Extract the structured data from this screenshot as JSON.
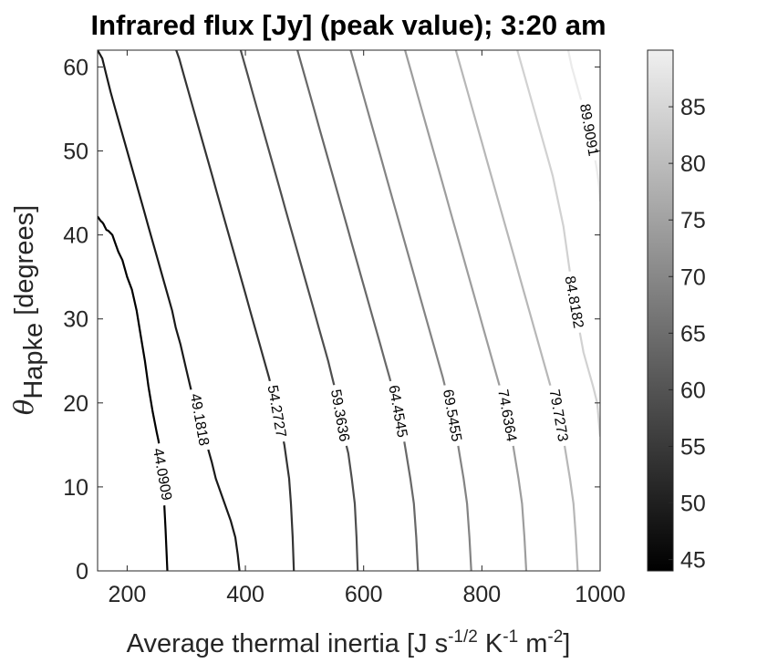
{
  "chart_data": {
    "type": "contour",
    "title": "Infrared flux [Jy] (peak value); 3:20 am",
    "xlabel": {
      "text": "Average thermal inertia [J s",
      "sup1": "-1/2",
      "mid1": " K",
      "sup2": "-1",
      "mid2": " m",
      "sup3": "-2",
      "end": "]"
    },
    "ylabel": {
      "theta": "θ",
      "sub": "Hapke",
      "unit": " [degrees]"
    },
    "xlim": [
      150,
      1000
    ],
    "ylim": [
      0,
      62
    ],
    "xticks": [
      200,
      400,
      600,
      800,
      1000
    ],
    "yticks": [
      0,
      10,
      20,
      30,
      40,
      50,
      60
    ],
    "colorbar": {
      "colormap": "gray",
      "limits": [
        44,
        90
      ],
      "ticks": [
        45,
        50,
        55,
        60,
        65,
        70,
        75,
        80,
        85
      ]
    },
    "levels": [
      {
        "value": 44.0909,
        "label": "44.0909",
        "label_y": 11.5,
        "points": [
          [
            268,
            0
          ],
          [
            265,
            5
          ],
          [
            262,
            9
          ],
          [
            258,
            13
          ],
          [
            253,
            15.5
          ],
          [
            250,
            16.5
          ],
          [
            243,
            19
          ],
          [
            236,
            22
          ],
          [
            230,
            25
          ],
          [
            223,
            28
          ],
          [
            216,
            31
          ],
          [
            208,
            33.5
          ],
          [
            200,
            35
          ],
          [
            192,
            37
          ],
          [
            185,
            38
          ],
          [
            180,
            39
          ],
          [
            175,
            40
          ],
          [
            168,
            40.5
          ],
          [
            165,
            40.6
          ],
          [
            162,
            41
          ],
          [
            160,
            41.3
          ],
          [
            158,
            41.5
          ],
          [
            155,
            41.7
          ],
          [
            152,
            42
          ],
          [
            150,
            42.2
          ]
        ],
        "extra": []
      },
      {
        "value": 49.1818,
        "label": "49.1818",
        "label_y": 18,
        "points": [
          [
            390,
            0
          ],
          [
            387,
            2
          ],
          [
            383,
            4
          ],
          [
            375,
            6
          ],
          [
            360,
            9
          ],
          [
            350,
            11
          ],
          [
            343,
            13
          ],
          [
            335,
            15
          ],
          [
            330,
            16.5
          ],
          [
            320,
            18.5
          ],
          [
            310,
            21
          ],
          [
            300,
            24
          ],
          [
            290,
            27
          ],
          [
            282,
            29
          ],
          [
            276,
            31
          ],
          [
            268,
            33
          ],
          [
            260,
            35
          ],
          [
            252,
            37
          ],
          [
            244,
            39
          ],
          [
            236,
            41
          ],
          [
            228,
            43
          ],
          [
            220,
            45
          ],
          [
            212,
            47
          ],
          [
            204,
            49
          ],
          [
            196,
            51
          ],
          [
            188,
            53
          ],
          [
            180,
            55
          ],
          [
            172,
            57
          ],
          [
            165,
            59
          ],
          [
            158,
            61
          ],
          [
            150,
            62
          ]
        ]
      },
      {
        "value": 54.2727,
        "label": "54.2727",
        "label_y": 19,
        "points": [
          [
            482,
            0
          ],
          [
            480,
            4
          ],
          [
            477,
            8
          ],
          [
            474,
            11
          ],
          [
            470,
            13
          ],
          [
            466,
            15
          ],
          [
            460,
            17
          ],
          [
            453,
            19
          ],
          [
            447,
            21
          ],
          [
            440,
            23
          ],
          [
            432,
            25
          ],
          [
            424,
            27
          ],
          [
            416,
            29
          ],
          [
            408,
            31
          ],
          [
            400,
            33
          ],
          [
            392,
            35
          ],
          [
            384,
            37
          ],
          [
            376,
            39
          ],
          [
            368,
            41
          ],
          [
            360,
            43
          ],
          [
            352,
            45
          ],
          [
            344,
            47
          ],
          [
            336,
            49
          ],
          [
            328,
            51
          ],
          [
            320,
            53
          ],
          [
            312,
            55
          ],
          [
            304,
            57
          ],
          [
            296,
            59
          ],
          [
            288,
            61
          ],
          [
            283,
            62
          ]
        ]
      },
      {
        "value": 59.3636,
        "label": "59.3636",
        "label_y": 18.5,
        "points": [
          [
            590,
            0
          ],
          [
            588,
            4
          ],
          [
            585,
            8
          ],
          [
            580,
            11
          ],
          [
            574,
            14
          ],
          [
            567,
            16
          ],
          [
            560,
            18.5
          ],
          [
            554,
            21
          ],
          [
            547,
            23
          ],
          [
            540,
            25
          ],
          [
            532,
            27
          ],
          [
            524,
            29
          ],
          [
            516,
            31
          ],
          [
            508,
            33
          ],
          [
            500,
            35
          ],
          [
            492,
            37
          ],
          [
            484,
            39
          ],
          [
            476,
            41
          ],
          [
            468,
            43
          ],
          [
            460,
            45
          ],
          [
            452,
            47
          ],
          [
            444,
            49
          ],
          [
            436,
            51
          ],
          [
            428,
            53
          ],
          [
            420,
            55
          ],
          [
            412,
            57
          ],
          [
            404,
            59
          ],
          [
            396,
            61
          ],
          [
            392,
            62
          ]
        ]
      },
      {
        "value": 64.4545,
        "label": "64.4545",
        "label_y": 19,
        "points": [
          [
            692,
            0
          ],
          [
            689,
            4
          ],
          [
            685,
            8
          ],
          [
            679,
            11
          ],
          [
            672,
            14
          ],
          [
            665,
            17
          ],
          [
            658,
            19
          ],
          [
            651,
            21
          ],
          [
            644,
            23
          ],
          [
            636,
            25
          ],
          [
            628,
            27
          ],
          [
            620,
            29
          ],
          [
            612,
            31
          ],
          [
            604,
            33
          ],
          [
            596,
            35
          ],
          [
            588,
            37
          ],
          [
            580,
            39
          ],
          [
            572,
            41
          ],
          [
            564,
            43
          ],
          [
            556,
            45
          ],
          [
            548,
            47
          ],
          [
            540,
            49
          ],
          [
            532,
            51
          ],
          [
            524,
            53
          ],
          [
            516,
            55
          ],
          [
            508,
            57
          ],
          [
            500,
            59
          ],
          [
            492,
            61
          ],
          [
            488,
            62
          ]
        ]
      },
      {
        "value": 69.5455,
        "label": "69.5455",
        "label_y": 18.5,
        "points": [
          [
            782,
            0
          ],
          [
            779,
            4
          ],
          [
            775,
            8
          ],
          [
            769,
            11
          ],
          [
            762,
            14
          ],
          [
            755,
            17
          ],
          [
            748,
            19
          ],
          [
            741,
            21
          ],
          [
            734,
            23
          ],
          [
            726,
            25
          ],
          [
            718,
            27
          ],
          [
            710,
            29
          ],
          [
            702,
            31
          ],
          [
            694,
            33
          ],
          [
            686,
            35
          ],
          [
            678,
            37
          ],
          [
            670,
            39
          ],
          [
            662,
            41
          ],
          [
            654,
            43
          ],
          [
            646,
            45
          ],
          [
            638,
            47
          ],
          [
            630,
            49
          ],
          [
            622,
            51
          ],
          [
            614,
            53
          ],
          [
            606,
            55
          ],
          [
            598,
            57
          ],
          [
            590,
            59
          ],
          [
            582,
            61
          ],
          [
            578,
            62
          ]
        ]
      },
      {
        "value": 74.6364,
        "label": "74.6364",
        "label_y": 18.5,
        "points": [
          [
            875,
            0
          ],
          [
            872,
            4
          ],
          [
            868,
            8
          ],
          [
            862,
            11
          ],
          [
            855,
            14
          ],
          [
            848,
            17
          ],
          [
            841,
            19
          ],
          [
            834,
            21
          ],
          [
            826,
            23
          ],
          [
            818,
            25
          ],
          [
            810,
            27
          ],
          [
            802,
            29
          ],
          [
            794,
            31
          ],
          [
            786,
            33
          ],
          [
            778,
            35
          ],
          [
            770,
            37
          ],
          [
            762,
            39
          ],
          [
            754,
            41
          ],
          [
            746,
            43
          ],
          [
            738,
            45
          ],
          [
            730,
            47
          ],
          [
            722,
            49
          ],
          [
            714,
            51
          ],
          [
            706,
            53
          ],
          [
            698,
            55
          ],
          [
            690,
            57
          ],
          [
            682,
            59
          ],
          [
            674,
            61
          ],
          [
            670,
            62
          ]
        ]
      },
      {
        "value": 79.7273,
        "label": "79.7273",
        "label_y": 18.5,
        "points": [
          [
            962,
            0
          ],
          [
            959,
            4
          ],
          [
            955,
            8
          ],
          [
            949,
            11
          ],
          [
            942,
            14
          ],
          [
            935,
            17
          ],
          [
            928,
            19
          ],
          [
            920,
            21
          ],
          [
            912,
            23
          ],
          [
            904,
            25
          ],
          [
            896,
            27
          ],
          [
            888,
            29
          ],
          [
            880,
            31
          ],
          [
            872,
            33
          ],
          [
            864,
            35
          ],
          [
            856,
            37
          ],
          [
            848,
            39
          ],
          [
            840,
            41
          ],
          [
            832,
            43
          ],
          [
            824,
            45
          ],
          [
            816,
            47
          ],
          [
            808,
            49
          ],
          [
            800,
            51
          ],
          [
            792,
            53
          ],
          [
            784,
            55
          ],
          [
            776,
            57
          ],
          [
            768,
            59
          ],
          [
            760,
            61
          ],
          [
            756,
            62
          ]
        ]
      },
      {
        "value": 84.8182,
        "label": "84.8182",
        "label_y": 32,
        "points": [
          [
            1000,
            16
          ],
          [
            995,
            20
          ],
          [
            988,
            22
          ],
          [
            980,
            24
          ],
          [
            972,
            26
          ],
          [
            964,
            29
          ],
          [
            956,
            32
          ],
          [
            950,
            35
          ],
          [
            944,
            38
          ],
          [
            938,
            41
          ],
          [
            932,
            43
          ],
          [
            926,
            45
          ],
          [
            920,
            47
          ],
          [
            912,
            49
          ],
          [
            904,
            51
          ],
          [
            896,
            53
          ],
          [
            888,
            55
          ],
          [
            880,
            57
          ],
          [
            872,
            59
          ],
          [
            864,
            61
          ],
          [
            860,
            62
          ]
        ]
      },
      {
        "value": 89.9091,
        "label": "89.9091",
        "label_y": 52.5,
        "points": [
          [
            1000,
            44
          ],
          [
            998,
            46
          ],
          [
            994,
            48
          ],
          [
            989,
            50
          ],
          [
            983,
            52
          ],
          [
            976,
            54
          ],
          [
            968,
            56
          ],
          [
            960,
            58
          ],
          [
            952,
            60
          ],
          [
            946,
            62
          ]
        ]
      }
    ]
  }
}
